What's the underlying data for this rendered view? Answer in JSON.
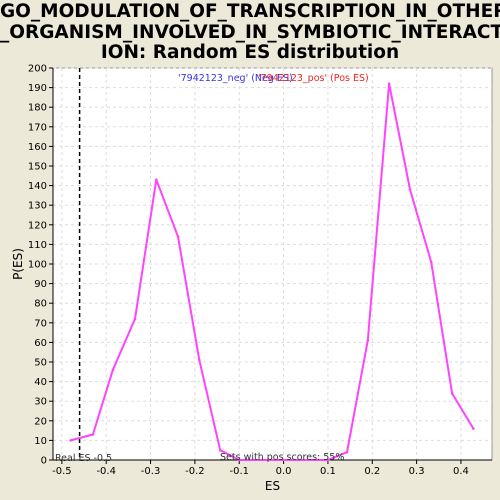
{
  "chart_data": {
    "type": "line",
    "title": "GO_MODULATION_OF_TRANSCRIPTION_IN_OTHER\n_ORGANISM_INVOLVED_IN_SYMBIOTIC_INTERACT\nION: Random ES distribution",
    "xlabel": "ES",
    "ylabel": "P(ES)",
    "xlim": [
      -0.52,
      0.47
    ],
    "ylim": [
      0,
      200
    ],
    "xticks": [
      -0.5,
      -0.4,
      -0.3,
      -0.2,
      -0.1,
      0.0,
      0.1,
      0.2,
      0.3,
      0.4
    ],
    "xtick_labels": [
      "-0.5",
      "-0.4",
      "-0.3",
      "-0.2",
      "-0.1",
      "0.0",
      "0.1",
      "0.2",
      "0.3",
      "0.4"
    ],
    "yticks": [
      0,
      10,
      20,
      30,
      40,
      50,
      60,
      70,
      80,
      90,
      100,
      110,
      120,
      130,
      140,
      150,
      160,
      170,
      180,
      190,
      200
    ],
    "grid": true,
    "series": [
      {
        "color": "#ff44ff",
        "x": [
          -0.48,
          -0.43,
          -0.385,
          -0.335,
          -0.287,
          -0.238,
          -0.19,
          -0.143,
          -0.1,
          0.1,
          0.143,
          0.19,
          0.238,
          0.285,
          0.333,
          0.38,
          0.428
        ],
        "y": [
          10,
          13,
          46,
          72,
          143,
          114,
          51,
          5,
          0,
          0,
          4,
          61,
          192,
          138,
          101,
          34,
          16
        ]
      }
    ],
    "real_es": {
      "value": -0.46,
      "label": "Real ES -0.5"
    },
    "legend": {
      "neg": {
        "text": "'7942123_neg' (Neg ES)",
        "color": "#3333ee"
      },
      "pos": {
        "text": "'7942123_pos' (Pos ES)",
        "color": "#ee2222"
      }
    },
    "footnote": "Sets with pos scores: 55%"
  }
}
